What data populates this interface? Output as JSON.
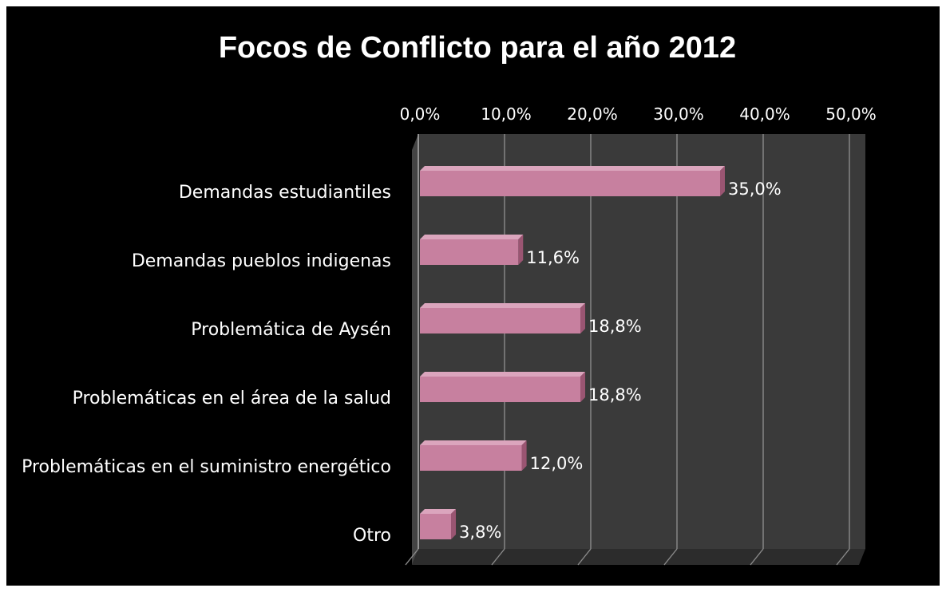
{
  "chart_data": {
    "type": "bar",
    "orientation": "horizontal",
    "title": "Focos de Conflicto para el año 2012",
    "categories": [
      "Demandas estudiantiles",
      "Demandas pueblos indigenas",
      "Problemática de Aysén",
      "Problemáticas en el área de la salud",
      "Problemáticas en el suministro energético",
      "Otro"
    ],
    "values": [
      35.0,
      11.6,
      18.8,
      18.8,
      12.0,
      3.8
    ],
    "value_labels": [
      "35,0%",
      "11,6%",
      "18,8%",
      "18,8%",
      "12,0%",
      "3,8%"
    ],
    "xlim": [
      0,
      50
    ],
    "x_ticks": [
      0,
      10,
      20,
      30,
      40,
      50
    ],
    "x_tick_labels": [
      "0,0%",
      "10,0%",
      "20,0%",
      "30,0%",
      "40,0%",
      "50,0%"
    ],
    "x_axis_position": "top",
    "grid": true,
    "legend": "none",
    "colors": {
      "background": "#000000",
      "bar": "#c7809f",
      "bar_top": "#dba5bd",
      "bar_side": "#9a5572",
      "wall": "#3a3a3a",
      "floor": "#2c2c2c",
      "gridline": "#8a8a8a",
      "text": "#ffffff"
    }
  }
}
